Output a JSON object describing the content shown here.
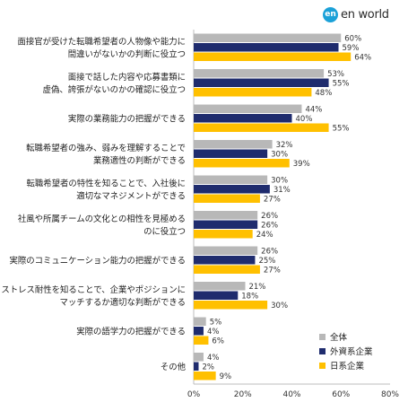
{
  "brand": {
    "mark": "en",
    "text": "en world"
  },
  "chart_data": {
    "type": "bar",
    "orientation": "horizontal",
    "categories": [
      [
        "面接官が受けた転職希望者の人物像や能力に",
        "間違いがないかの判断に役立つ"
      ],
      [
        "面接で話した内容や応募書類に",
        "虚偽、誇張がないのかの確認に役立つ"
      ],
      [
        "実際の業務能力の把握ができる"
      ],
      [
        "転職希望者の強み、弱みを理解することで",
        "業務適性の判断ができる"
      ],
      [
        "転職希望者の特性を知ることで、入社後に",
        "適切なマネジメントができる"
      ],
      [
        "社風や所属チームの文化との相性を見極める",
        "のに役立つ"
      ],
      [
        "実際のコミュニケーション能力の把握ができる"
      ],
      [
        "ストレス耐性を知ることで、企業やポジションに",
        "マッチするか適切な判断ができる"
      ],
      [
        "実際の語学力の把握ができる"
      ],
      [
        "その他"
      ]
    ],
    "series": [
      {
        "name": "全体",
        "color": "#b8b8b8",
        "values": [
          60,
          53,
          44,
          32,
          30,
          26,
          26,
          21,
          5,
          4
        ]
      },
      {
        "name": "外資系企業",
        "color": "#1f2c6e",
        "values": [
          59,
          55,
          40,
          30,
          31,
          26,
          25,
          18,
          4,
          2
        ]
      },
      {
        "name": "日系企業",
        "color": "#ffc000",
        "values": [
          64,
          48,
          55,
          39,
          27,
          24,
          27,
          30,
          6,
          9
        ]
      }
    ],
    "value_suffix": "%",
    "xlim": [
      0,
      80
    ],
    "xticks": [
      "0%",
      "20%",
      "40%",
      "60%",
      "80%"
    ],
    "legend_position": "bottom-right",
    "grid": false
  }
}
